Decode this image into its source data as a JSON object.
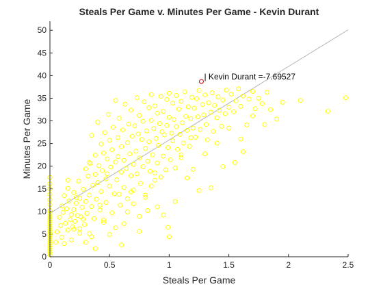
{
  "chart_data": {
    "type": "scatter",
    "title": "Steals Per Game v. Minutes Per Game - Kevin Durant",
    "xlabel": "Steals Per Game",
    "ylabel": "Minutes Per Game",
    "xlim": [
      0,
      2.5
    ],
    "ylim": [
      0,
      52
    ],
    "xticks": [
      0,
      0.5,
      1,
      1.5,
      2,
      2.5
    ],
    "xtick_labels": [
      "0",
      "0.5",
      "1",
      "1.5",
      "2",
      "2.5"
    ],
    "yticks": [
      0,
      5,
      10,
      15,
      20,
      25,
      30,
      35,
      40,
      45,
      50
    ],
    "ytick_labels": [
      "0",
      "5",
      "10",
      "15",
      "20",
      "25",
      "30",
      "35",
      "40",
      "45",
      "50"
    ],
    "grid": false,
    "legend": "none",
    "colors": {
      "points": "#ffff00",
      "highlight": "#cc0000",
      "fit_line": "#b4b4b4",
      "axes": "#262626"
    },
    "fit_line": {
      "slope": 16.2,
      "intercept": 9.6
    },
    "highlight": {
      "x": 1.27,
      "y": 38.7,
      "label": "Kevin Durant =-7.69527"
    },
    "points": [
      [
        0,
        0.4
      ],
      [
        0,
        0.9
      ],
      [
        0,
        1.3
      ],
      [
        0,
        1.8
      ],
      [
        0,
        2.2
      ],
      [
        0,
        2.7
      ],
      [
        0,
        3.1
      ],
      [
        0,
        3.6
      ],
      [
        0,
        4.0
      ],
      [
        0,
        4.5
      ],
      [
        0,
        4.9
      ],
      [
        0,
        5.4
      ],
      [
        0,
        5.8
      ],
      [
        0,
        6.3
      ],
      [
        0,
        6.7
      ],
      [
        0,
        7.2
      ],
      [
        0,
        7.6
      ],
      [
        0,
        8.1
      ],
      [
        0,
        8.5
      ],
      [
        0,
        9.0
      ],
      [
        0,
        9.5
      ],
      [
        0,
        10.2
      ],
      [
        0,
        11.5
      ],
      [
        0,
        12.6
      ],
      [
        0,
        13.8
      ],
      [
        0,
        15.0
      ],
      [
        0,
        16.1
      ],
      [
        0,
        17.5
      ],
      [
        0.05,
        3.2
      ],
      [
        0.06,
        5.5
      ],
      [
        0.08,
        8.7
      ],
      [
        0.09,
        6.9
      ],
      [
        0.1,
        11.2
      ],
      [
        0.1,
        4.3
      ],
      [
        0.11,
        9.8
      ],
      [
        0.12,
        13.5
      ],
      [
        0.13,
        7.4
      ],
      [
        0.14,
        10.6
      ],
      [
        0.15,
        5.9
      ],
      [
        0.15,
        15.1
      ],
      [
        0.16,
        12.3
      ],
      [
        0.17,
        8.2
      ],
      [
        0.18,
        9.3
      ],
      [
        0.19,
        6.6
      ],
      [
        0.2,
        10.4
      ],
      [
        0.2,
        14.2
      ],
      [
        0.21,
        7.8
      ],
      [
        0.22,
        11.8
      ],
      [
        0.23,
        9.1
      ],
      [
        0.24,
        16.7
      ],
      [
        0.25,
        6.2
      ],
      [
        0.25,
        12.9
      ],
      [
        0.26,
        8.8
      ],
      [
        0.27,
        10.9
      ],
      [
        0.28,
        14.9
      ],
      [
        0.29,
        7.1
      ],
      [
        0.3,
        19.4
      ],
      [
        0.3,
        12.2
      ],
      [
        0.31,
        9.6
      ],
      [
        0.32,
        17.8
      ],
      [
        0.33,
        5.1
      ],
      [
        0.33,
        13.6
      ],
      [
        0.34,
        20.6
      ],
      [
        0.35,
        11.1
      ],
      [
        0.35,
        26.8
      ],
      [
        0.36,
        15.8
      ],
      [
        0.37,
        8.4
      ],
      [
        0.38,
        22.4
      ],
      [
        0.38,
        18.2
      ],
      [
        0.39,
        12.7
      ],
      [
        0.4,
        29.7
      ],
      [
        0.4,
        16.4
      ],
      [
        0.41,
        20.1
      ],
      [
        0.42,
        10.3
      ],
      [
        0.43,
        24.9
      ],
      [
        0.43,
        14.4
      ],
      [
        0.44,
        19.0
      ],
      [
        0.45,
        7.6
      ],
      [
        0.45,
        22.9
      ],
      [
        0.46,
        27.4
      ],
      [
        0.47,
        17.2
      ],
      [
        0.47,
        12.0
      ],
      [
        0.48,
        21.6
      ],
      [
        0.49,
        31.4
      ],
      [
        0.5,
        15.6
      ],
      [
        0.5,
        25.7
      ],
      [
        0.51,
        19.8
      ],
      [
        0.52,
        9.7
      ],
      [
        0.52,
        23.6
      ],
      [
        0.53,
        28.6
      ],
      [
        0.54,
        13.9
      ],
      [
        0.55,
        20.9
      ],
      [
        0.55,
        34.5
      ],
      [
        0.56,
        17.0
      ],
      [
        0.57,
        26.3
      ],
      [
        0.57,
        22.1
      ],
      [
        0.58,
        30.6
      ],
      [
        0.59,
        11.4
      ],
      [
        0.6,
        18.7
      ],
      [
        0.6,
        24.3
      ],
      [
        0.61,
        28.0
      ],
      [
        0.62,
        15.3
      ],
      [
        0.62,
        21.3
      ],
      [
        0.63,
        33.7
      ],
      [
        0.64,
        19.5
      ],
      [
        0.65,
        25.2
      ],
      [
        0.65,
        12.8
      ],
      [
        0.66,
        29.3
      ],
      [
        0.67,
        22.7
      ],
      [
        0.68,
        17.9
      ],
      [
        0.68,
        32.4
      ],
      [
        0.69,
        26.6
      ],
      [
        0.7,
        20.4
      ],
      [
        0.7,
        14.7
      ],
      [
        0.71,
        28.9
      ],
      [
        0.72,
        23.3
      ],
      [
        0.73,
        35.1
      ],
      [
        0.73,
        18.3
      ],
      [
        0.74,
        27.1
      ],
      [
        0.75,
        21.8
      ],
      [
        0.75,
        31.2
      ],
      [
        0.76,
        16.2
      ],
      [
        0.77,
        25.9
      ],
      [
        0.78,
        29.9
      ],
      [
        0.78,
        19.9
      ],
      [
        0.79,
        34.2
      ],
      [
        0.8,
        23.9
      ],
      [
        0.8,
        13.1
      ],
      [
        0.81,
        27.8
      ],
      [
        0.82,
        21.1
      ],
      [
        0.83,
        32.9
      ],
      [
        0.83,
        25.4
      ],
      [
        0.84,
        18.9
      ],
      [
        0.85,
        30.1
      ],
      [
        0.85,
        35.8
      ],
      [
        0.86,
        22.5
      ],
      [
        0.87,
        28.3
      ],
      [
        0.88,
        16.9
      ],
      [
        0.88,
        33.3
      ],
      [
        0.89,
        26.1
      ],
      [
        0.9,
        20.7
      ],
      [
        0.9,
        31.7
      ],
      [
        0.91,
        24.6
      ],
      [
        0.92,
        29.4
      ],
      [
        0.93,
        35.4
      ],
      [
        0.93,
        17.6
      ],
      [
        0.94,
        27.6
      ],
      [
        0.95,
        22.2
      ],
      [
        0.95,
        32.1
      ],
      [
        0.96,
        26.9
      ],
      [
        0.97,
        19.2
      ],
      [
        0.98,
        34.7
      ],
      [
        0.98,
        29.0
      ],
      [
        0.99,
        24.1
      ],
      [
        1.0,
        30.8
      ],
      [
        1.0,
        36.1
      ],
      [
        1.01,
        21.4
      ],
      [
        1.02,
        27.3
      ],
      [
        1.03,
        33.9
      ],
      [
        1.03,
        25.6
      ],
      [
        1.04,
        30.3
      ],
      [
        1.05,
        19.6
      ],
      [
        1.06,
        35.6
      ],
      [
        1.06,
        28.7
      ],
      [
        1.07,
        23.7
      ],
      [
        1.08,
        32.6
      ],
      [
        1.09,
        27.0
      ],
      [
        1.1,
        34.3
      ],
      [
        1.1,
        21.9
      ],
      [
        1.11,
        29.6
      ],
      [
        1.12,
        25.1
      ],
      [
        1.13,
        36.4
      ],
      [
        1.14,
        31.0
      ],
      [
        1.15,
        27.9
      ],
      [
        1.16,
        33.1
      ],
      [
        1.17,
        24.4
      ],
      [
        1.18,
        30.5
      ],
      [
        1.19,
        35.2
      ],
      [
        1.2,
        28.4
      ],
      [
        1.21,
        32.8
      ],
      [
        1.22,
        26.4
      ],
      [
        1.23,
        34.9
      ],
      [
        1.24,
        30.9
      ],
      [
        1.25,
        36.7
      ],
      [
        1.26,
        28.1
      ],
      [
        1.28,
        33.6
      ],
      [
        1.29,
        31.3
      ],
      [
        1.3,
        35.7
      ],
      [
        1.31,
        29.2
      ],
      [
        1.32,
        25.8
      ],
      [
        1.33,
        34.0
      ],
      [
        1.35,
        31.9
      ],
      [
        1.36,
        36.2
      ],
      [
        1.37,
        27.7
      ],
      [
        1.38,
        33.4
      ],
      [
        1.4,
        30.7
      ],
      [
        1.41,
        35.3
      ],
      [
        1.42,
        32.3
      ],
      [
        1.44,
        28.8
      ],
      [
        1.45,
        34.6
      ],
      [
        1.47,
        31.6
      ],
      [
        1.48,
        36.8
      ],
      [
        1.5,
        33.0
      ],
      [
        1.52,
        35.9
      ],
      [
        1.54,
        32.0
      ],
      [
        1.56,
        34.4
      ],
      [
        1.58,
        37.1
      ],
      [
        1.6,
        33.2
      ],
      [
        1.62,
        35.5
      ],
      [
        1.65,
        29.1
      ],
      [
        1.67,
        34.8
      ],
      [
        1.7,
        36.5
      ],
      [
        1.72,
        32.7
      ],
      [
        1.75,
        35.0
      ],
      [
        1.78,
        33.8
      ],
      [
        1.82,
        36.3
      ],
      [
        1.85,
        32.5
      ],
      [
        1.9,
        30.4
      ],
      [
        1.95,
        34.1
      ],
      [
        2.1,
        34.5
      ],
      [
        2.33,
        32.1
      ],
      [
        2.48,
        35.1
      ],
      [
        0.3,
        3.2
      ],
      [
        0.25,
        5.2
      ],
      [
        0.35,
        4.4
      ],
      [
        0.45,
        8.1
      ],
      [
        0.55,
        6.4
      ],
      [
        0.65,
        9.9
      ],
      [
        0.7,
        11.7
      ],
      [
        0.75,
        8.9
      ],
      [
        0.8,
        13.6
      ],
      [
        0.95,
        9.2
      ],
      [
        1.0,
        4.4
      ],
      [
        0.99,
        6.5
      ],
      [
        1.15,
        17.4
      ],
      [
        1.25,
        14.6
      ],
      [
        1.35,
        15.2
      ],
      [
        1.45,
        19.9
      ],
      [
        1.62,
        23.2
      ],
      [
        1.3,
        22.7
      ],
      [
        1.55,
        20.8
      ],
      [
        1.4,
        25.1
      ],
      [
        0.2,
        6.1
      ],
      [
        0.18,
        3.7
      ],
      [
        0.12,
        2.9
      ],
      [
        0.38,
        1.8
      ],
      [
        0.42,
        11.4
      ],
      [
        0.58,
        13.8
      ],
      [
        0.62,
        7.3
      ],
      [
        0.85,
        15.6
      ],
      [
        1.05,
        12.2
      ],
      [
        1.2,
        19.3
      ],
      [
        0.9,
        11.0
      ],
      [
        0.75,
        5.6
      ],
      [
        0.6,
        2.6
      ],
      [
        0.5,
        4.9
      ],
      [
        0.28,
        8.3
      ],
      [
        0.22,
        13.1
      ],
      [
        0.15,
        16.9
      ],
      [
        0.33,
        20.8
      ],
      [
        0.48,
        18.3
      ],
      [
        0.68,
        14.3
      ],
      [
        0.82,
        10.2
      ],
      [
        0.88,
        18.5
      ],
      [
        1.1,
        22.5
      ],
      [
        1.18,
        26.3
      ],
      [
        1.5,
        28.4
      ],
      [
        1.6,
        26.0
      ],
      [
        1.7,
        31.1
      ],
      [
        1.8,
        29.2
      ]
    ]
  }
}
